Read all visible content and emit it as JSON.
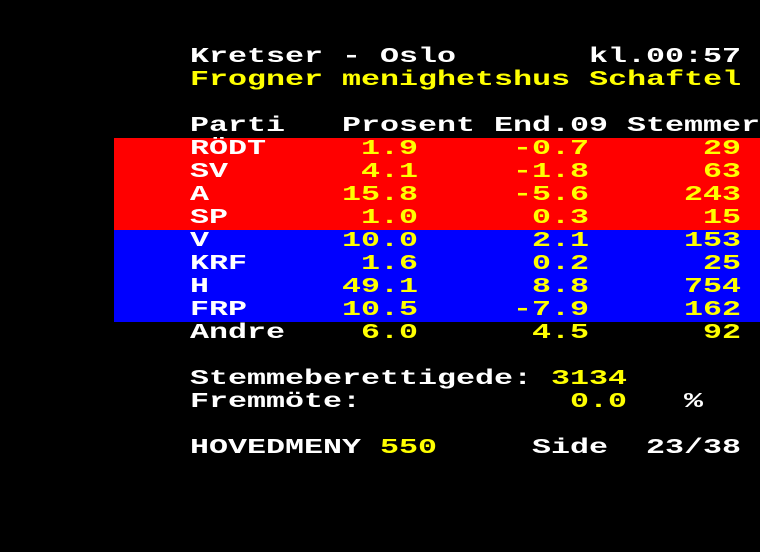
{
  "colors": {
    "background": "#000000",
    "text": "#ffffff",
    "highlight": "#ffff00",
    "red_block": "#ff0000",
    "blue_block": "#0000ff"
  },
  "header": {
    "title": "Kretser - Oslo",
    "time": "kl.00:57",
    "subtitle": "Frogner menighetshus Schaftel"
  },
  "table": {
    "columns": [
      "Parti",
      "Prosent",
      "End.09",
      "Stemmer"
    ],
    "rows": [
      {
        "party": "RÖDT",
        "prosent": "1.9",
        "endring": "-0.7",
        "stemmer": "29",
        "block": "red"
      },
      {
        "party": "SV",
        "prosent": "4.1",
        "endring": "-1.8",
        "stemmer": "63",
        "block": "red"
      },
      {
        "party": "A",
        "prosent": "15.8",
        "endring": "-5.6",
        "stemmer": "243",
        "block": "red"
      },
      {
        "party": "SP",
        "prosent": "1.0",
        "endring": "0.3",
        "stemmer": "15",
        "block": "red"
      },
      {
        "party": "V",
        "prosent": "10.0",
        "endring": "2.1",
        "stemmer": "153",
        "block": "blue"
      },
      {
        "party": "KRF",
        "prosent": "1.6",
        "endring": "0.2",
        "stemmer": "25",
        "block": "blue"
      },
      {
        "party": "H",
        "prosent": "49.1",
        "endring": "8.8",
        "stemmer": "754",
        "block": "blue"
      },
      {
        "party": "FRP",
        "prosent": "10.5",
        "endring": "-7.9",
        "stemmer": "162",
        "block": "blue"
      },
      {
        "party": "Andre",
        "prosent": "6.0",
        "endring": "4.5",
        "stemmer": "92",
        "block": "none"
      }
    ]
  },
  "summary": {
    "eligible_label": "Stemmeberettigede:",
    "eligible_value": "3134",
    "turnout_label": "Fremmöte:",
    "turnout_value": "0.0",
    "turnout_unit": "%"
  },
  "footer": {
    "menu_label": "HOVEDMENY",
    "menu_page": "550",
    "side_label": "Side",
    "side_value": "23/38"
  }
}
